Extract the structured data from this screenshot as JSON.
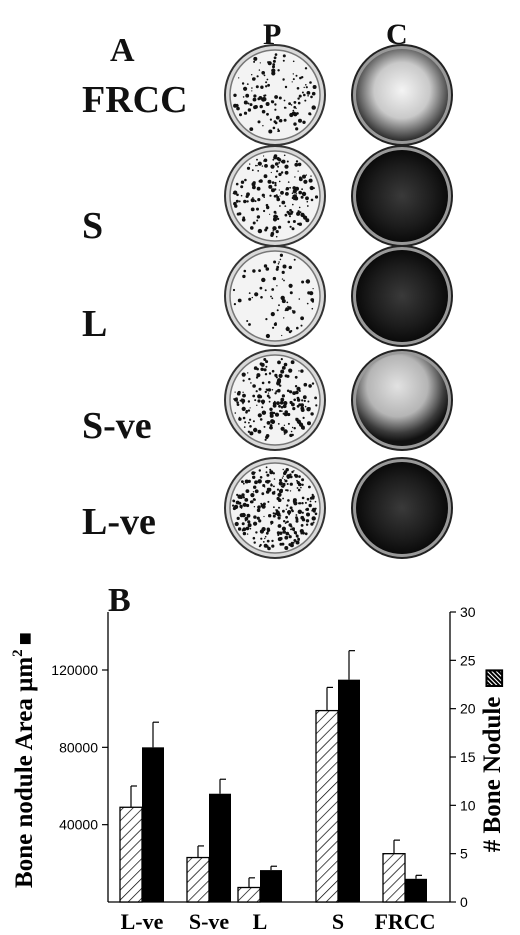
{
  "panel_a": {
    "letter": "A",
    "column_headers": [
      "P",
      "C"
    ],
    "rows": [
      {
        "label": "FRCC",
        "p_density": 0.35,
        "c_tone": "light"
      },
      {
        "label": "S",
        "p_density": 0.55,
        "c_tone": "dark"
      },
      {
        "label": "L",
        "p_density": 0.15,
        "c_tone": "dark"
      },
      {
        "label": "S-ve",
        "p_density": 0.6,
        "c_tone": "mixed"
      },
      {
        "label": "L-ve",
        "p_density": 0.9,
        "c_tone": "dark"
      }
    ]
  },
  "panel_b": {
    "letter": "B"
  },
  "chart_data": {
    "type": "bar",
    "categories": [
      "L-ve",
      "S-ve",
      "L",
      "S",
      "FRCC"
    ],
    "series": [
      {
        "name": "# Bone Nodule",
        "axis": "right",
        "pattern": "hatched",
        "values": [
          9.8,
          4.6,
          1.5,
          19.8,
          5.0
        ],
        "errors": [
          2.2,
          1.2,
          1.0,
          2.4,
          1.4
        ]
      },
      {
        "name": "Bone nodule Area",
        "axis": "left",
        "pattern": "solid",
        "values": [
          80000,
          56000,
          16500,
          115000,
          12000
        ],
        "errors": [
          13000,
          7500,
          2000,
          15000,
          1800
        ]
      }
    ],
    "ylabel": "Bone nodule Area μm",
    "ylabel_superscript": "2",
    "ylabel_symbol": "■",
    "y2label": "# Bone Nodule",
    "y2label_symbol": "▨",
    "ylim": [
      0,
      150000
    ],
    "y2lim": [
      0,
      30
    ],
    "yticks": [
      "40000",
      "80000",
      "120000"
    ],
    "ytick_values": [
      40000,
      80000,
      120000
    ],
    "y2ticks": [
      "0",
      "5",
      "10",
      "15",
      "20",
      "25",
      "30"
    ],
    "y2tick_values": [
      0,
      5,
      10,
      15,
      20,
      25,
      30
    ],
    "grid": false
  }
}
